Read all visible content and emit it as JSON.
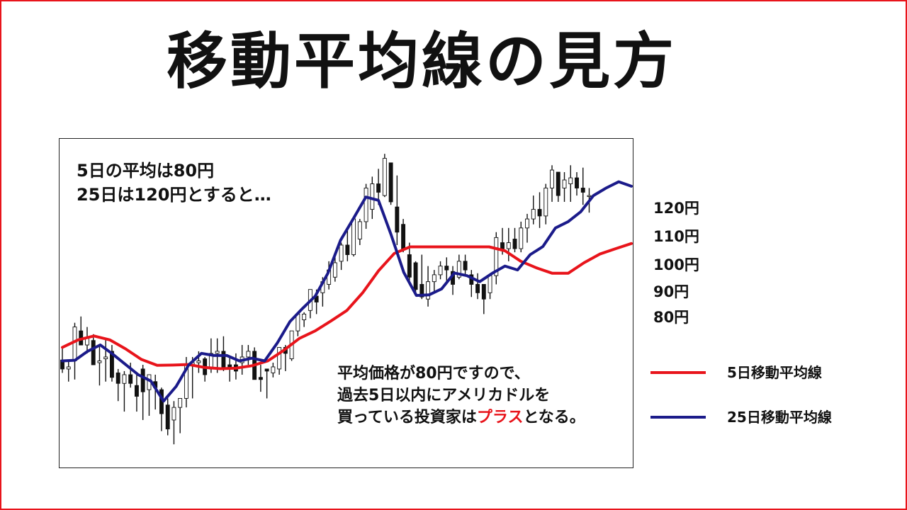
{
  "title": "移動平均線の見方",
  "colors": {
    "frame": "#e8141b",
    "ma5": "#e8141b",
    "ma25": "#1b1b8a",
    "candle_up": "#ffffff",
    "candle_down": "#111111",
    "highlight": "#e8141b"
  },
  "notes": {
    "top_line1": "5日の平均は80円",
    "top_line2": "25日は120円とすると…",
    "bottom_line1": "平均価格が80円ですので、",
    "bottom_line2": "過去5日以内にアメリカドルを",
    "bottom_line3_pre": "買っている投資家は",
    "bottom_line3_highlight": "プラス",
    "bottom_line3_post": "となる。"
  },
  "price_labels": [
    "120円",
    "110円",
    "100円",
    "90円",
    "80円"
  ],
  "legend": {
    "ma5_label": "5日移動平均線",
    "ma25_label": "25日移動平均線"
  },
  "chart_data": {
    "type": "line",
    "series": [
      {
        "name": "5日移動平均線",
        "x": [
          0,
          5,
          10,
          15,
          20,
          25,
          30,
          35,
          40,
          45,
          50,
          55,
          60,
          65,
          70,
          75,
          80,
          85,
          90,
          95,
          100,
          105,
          110,
          115,
          120,
          125,
          130,
          135,
          140,
          145,
          150,
          155,
          160,
          165,
          170,
          175,
          180
        ],
        "values": [
          55.5,
          58,
          59.3,
          58,
          55,
          51.5,
          49.5,
          49.6,
          49.8,
          48.8,
          48.4,
          48.6,
          49.4,
          51,
          54.5,
          58.5,
          61,
          64.3,
          67.8,
          73.7,
          81,
          86.8,
          89,
          89,
          89,
          89,
          89,
          89,
          87.7,
          84.2,
          82,
          80.2,
          80.2,
          83.7,
          86.6,
          88.4,
          90.1
        ]
      },
      {
        "name": "25日移動平均線",
        "x": [
          0,
          4,
          8,
          12,
          16,
          20,
          24,
          28,
          32,
          36,
          40,
          44,
          48,
          52,
          56,
          60,
          64,
          68,
          72,
          76,
          80,
          84,
          88,
          92,
          96,
          100,
          104,
          108,
          112,
          116,
          120,
          124,
          128,
          132,
          136,
          140,
          144,
          148,
          152,
          156,
          160,
          164,
          168,
          172,
          176,
          180
        ],
        "values": [
          51,
          51.2,
          54.2,
          56.3,
          53.2,
          49.8,
          46.4,
          44.3,
          37.6,
          42.5,
          49.7,
          53.5,
          52.8,
          52.8,
          51,
          51.9,
          51,
          57,
          64.1,
          68.5,
          72.6,
          80.2,
          91.2,
          98.3,
          105.6,
          104.5,
          93,
          80.5,
          72.8,
          73,
          75,
          80.3,
          79.4,
          77.4,
          80.2,
          82.6,
          81.3,
          86.4,
          89.1,
          95.3,
          97.4,
          100.7,
          106.1,
          108.6,
          110.7,
          109.2
        ]
      }
    ],
    "candles": [
      [
        0,
        55.5,
        47,
        51.3,
        48.3
      ],
      [
        1.96,
        50.9,
        44.1,
        48.3,
        49
      ],
      [
        3.92,
        63.7,
        44.8,
        51,
        62.3
      ],
      [
        5.88,
        65.8,
        56.3,
        61,
        56.3
      ],
      [
        7.84,
        62.3,
        53.5,
        56.3,
        58.5
      ],
      [
        9.8,
        59.9,
        49.7,
        57.8,
        49.7
      ],
      [
        11.76,
        56.3,
        42.8,
        50.4,
        51
      ],
      [
        13.72,
        58.5,
        44.1,
        51.7,
        52.3
      ],
      [
        15.68,
        56.3,
        44.1,
        54.2,
        45.5
      ],
      [
        17.64,
        48.3,
        37.6,
        47,
        43.5
      ],
      [
        19.6,
        47.6,
        34.1,
        43.5,
        46.4
      ],
      [
        21.56,
        50.4,
        42.1,
        46.4,
        43.5
      ],
      [
        23.52,
        46.4,
        34.1,
        42.8,
        39.2
      ],
      [
        25.48,
        49.7,
        31.3,
        48.3,
        40.7
      ],
      [
        27.45,
        44.1,
        32.7,
        41.4,
        46.4
      ],
      [
        29.41,
        46.4,
        34.8,
        44.1,
        42.1
      ],
      [
        31.37,
        42.1,
        27.6,
        41.4,
        33.4
      ],
      [
        33.33,
        38.5,
        26.2,
        36.3,
        28.3
      ],
      [
        35.29,
        37.6,
        23.2,
        31.3,
        35.5
      ],
      [
        37.25,
        38.5,
        26.9,
        35.5,
        38.5
      ],
      [
        39.21,
        52.3,
        35.5,
        38.5,
        49.7
      ],
      [
        41.17,
        52.3,
        38.5,
        49.7,
        50.4
      ],
      [
        43.13,
        54.2,
        47,
        50.4,
        51
      ],
      [
        45.09,
        52.3,
        44.1,
        51.7,
        46.4
      ],
      [
        47.05,
        58.5,
        47,
        48.3,
        53.5
      ],
      [
        49.01,
        58.5,
        47,
        53.5,
        54.2
      ],
      [
        50.98,
        59.2,
        47.6,
        54.2,
        48.3
      ],
      [
        52.94,
        52.3,
        44.1,
        49.7,
        48.3
      ],
      [
        54.9,
        53.5,
        44.8,
        49.7,
        47.6
      ],
      [
        56.86,
        56.3,
        46.4,
        50.4,
        52.3
      ],
      [
        58.82,
        56.3,
        49.7,
        52.3,
        54.2
      ],
      [
        60.78,
        55.5,
        46.4,
        54.2,
        44.8
      ],
      [
        62.74,
        49.7,
        40.7,
        45.5,
        44.8
      ],
      [
        64.7,
        48.3,
        38.5,
        48.3,
        47.6
      ],
      [
        66.66,
        50.4,
        45.5,
        47,
        49
      ],
      [
        68.62,
        55.5,
        46.4,
        48.3,
        55.5
      ],
      [
        70.58,
        56.3,
        47.6,
        55.5,
        53.5
      ],
      [
        72.54,
        61,
        51,
        51.7,
        61
      ],
      [
        74.5,
        66.6,
        59.2,
        61,
        66.6
      ],
      [
        76.47,
        67.2,
        62.3,
        64.7,
        66.6
      ],
      [
        78.43,
        74.8,
        65.2,
        67.8,
        74.8
      ],
      [
        80.39,
        74.8,
        66.6,
        72.6,
        70.6
      ],
      [
        82.35,
        78.9,
        69.1,
        73.7,
        77.4
      ],
      [
        84.31,
        84.2,
        74.8,
        76.5,
        81.3
      ],
      [
        86.27,
        85.5,
        77.4,
        78.9,
        83.7
      ],
      [
        88.23,
        90.4,
        81.3,
        84.2,
        89.6
      ],
      [
        90.19,
        94.8,
        84.2,
        89.6,
        86.4
      ],
      [
        92.15,
        98.3,
        85.8,
        86.4,
        98.3
      ],
      [
        94.11,
        98.3,
        89.6,
        91.6,
        97.4
      ],
      [
        96.07,
        110,
        95,
        97.4,
        108.6
      ],
      [
        98.03,
        112.4,
        98.3,
        101.5,
        110
      ],
      [
        100,
        115,
        103,
        110,
        107.2
      ],
      [
        101.96,
        120,
        105.6,
        106.1,
        118.5
      ],
      [
        103.92,
        117,
        103,
        117,
        104
      ],
      [
        105.88,
        112.8,
        89.6,
        102.3,
        93.9
      ],
      [
        107.84,
        98.3,
        87.2,
        96.5,
        88.4
      ],
      [
        109.8,
        90.4,
        77.4,
        86.4,
        78.9
      ],
      [
        111.76,
        84.2,
        73,
        83.7,
        74.8
      ],
      [
        113.72,
        86.4,
        71.6,
        76.5,
        72.3
      ],
      [
        115.68,
        82.6,
        69.1,
        71.6,
        77.4
      ],
      [
        117.64,
        81.3,
        73.7,
        77.4,
        79.7
      ],
      [
        119.6,
        84.2,
        78.2,
        79.7,
        82.6
      ],
      [
        121.56,
        85.5,
        77.4,
        82.6,
        81.3
      ],
      [
        123.52,
        82.6,
        73,
        80.8,
        76.5
      ],
      [
        125.49,
        86.4,
        78.2,
        78.9,
        84.2
      ],
      [
        127.45,
        86.4,
        79.4,
        84.2,
        81.3
      ],
      [
        129.41,
        81.3,
        72.3,
        79.7,
        76.5
      ],
      [
        131.37,
        80.2,
        71.6,
        76.5,
        73.7
      ],
      [
        133.33,
        76.5,
        66.6,
        76.5,
        71.6
      ],
      [
        135.29,
        80.2,
        71.6,
        73.7,
        79.4
      ],
      [
        137.25,
        93.9,
        76.5,
        79.4,
        92.1
      ],
      [
        139.21,
        95.3,
        86.4,
        90.4,
        88.4
      ],
      [
        141.17,
        95.3,
        84.2,
        88.4,
        90.4
      ],
      [
        143.13,
        95.3,
        87.2,
        91.6,
        88.4
      ],
      [
        145.09,
        97.4,
        87.2,
        88.4,
        95.3
      ],
      [
        147.05,
        100,
        90.4,
        95.3,
        98.3
      ],
      [
        149.01,
        106.1,
        96.5,
        98.3,
        101.5
      ],
      [
        150.98,
        107.2,
        95.3,
        101.5,
        99.3
      ],
      [
        152.94,
        110,
        96.5,
        99.3,
        108.6
      ],
      [
        154.9,
        116.2,
        104,
        108.6,
        114.6
      ],
      [
        156.86,
        113.9,
        104,
        113.9,
        106.1
      ],
      [
        158.82,
        113.9,
        104,
        108.6,
        111.3
      ],
      [
        160.78,
        116.2,
        104,
        110,
        112
      ],
      [
        162.74,
        113.9,
        106.1,
        112,
        108.6
      ],
      [
        164.7,
        115.4,
        103,
        108.6,
        107.2
      ],
      [
        166.66,
        108.6,
        100.4,
        106.1,
        106.1
      ]
    ],
    "x_range": [
      0,
      180
    ],
    "y_range": [
      15,
      125
    ]
  }
}
